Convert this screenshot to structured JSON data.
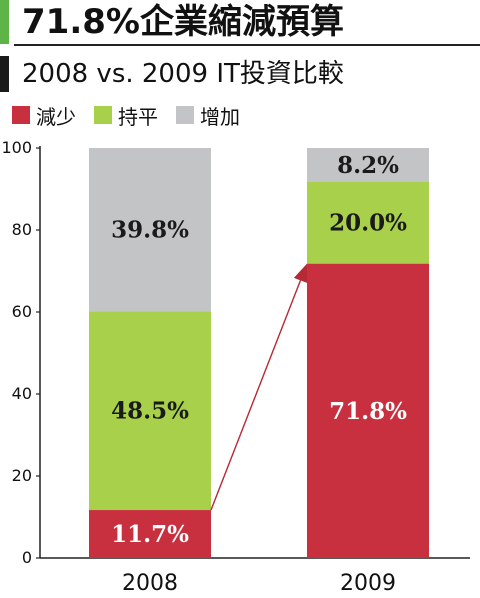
{
  "title": "71.8%企業縮減預算",
  "subtitle": "2008 vs. 2009 IT投資比較",
  "colors": {
    "decrease": "#c8303f",
    "flat": "#a8d04a",
    "increase": "#c3c4c6",
    "title_accent": "#5fb447",
    "subtitle_accent": "#1a1a1a",
    "arrow": "#b52a33"
  },
  "legend": [
    {
      "label": "減少",
      "color": "#c8303f"
    },
    {
      "label": "持平",
      "color": "#a8d04a"
    },
    {
      "label": "增加",
      "color": "#c3c4c6"
    }
  ],
  "chart_data": {
    "type": "bar",
    "stacked": true,
    "categories": [
      "2008",
      "2009"
    ],
    "series": [
      {
        "name": "減少",
        "values": [
          11.7,
          71.8
        ],
        "labels": [
          "11.7%",
          "71.8%"
        ],
        "color": "#c8303f",
        "label_color": "#ffffff"
      },
      {
        "name": "持平",
        "values": [
          48.5,
          20.0
        ],
        "labels": [
          "48.5%",
          "20.0%"
        ],
        "color": "#a8d04a",
        "label_color": "#1a1a1a"
      },
      {
        "name": "增加",
        "values": [
          39.8,
          8.2
        ],
        "labels": [
          "39.8%",
          "8.2%"
        ],
        "color": "#c3c4c6",
        "label_color": "#1a1a1a"
      }
    ],
    "ylim": [
      0,
      100
    ],
    "yticks": [
      "0",
      "20",
      "40",
      "60",
      "80",
      "100"
    ],
    "ytick_values": [
      0,
      20,
      40,
      60,
      80,
      100
    ],
    "legend_position": "top-left",
    "annotation": "arrow from top of 2008 減少 segment to top of 2009 減少 segment"
  }
}
